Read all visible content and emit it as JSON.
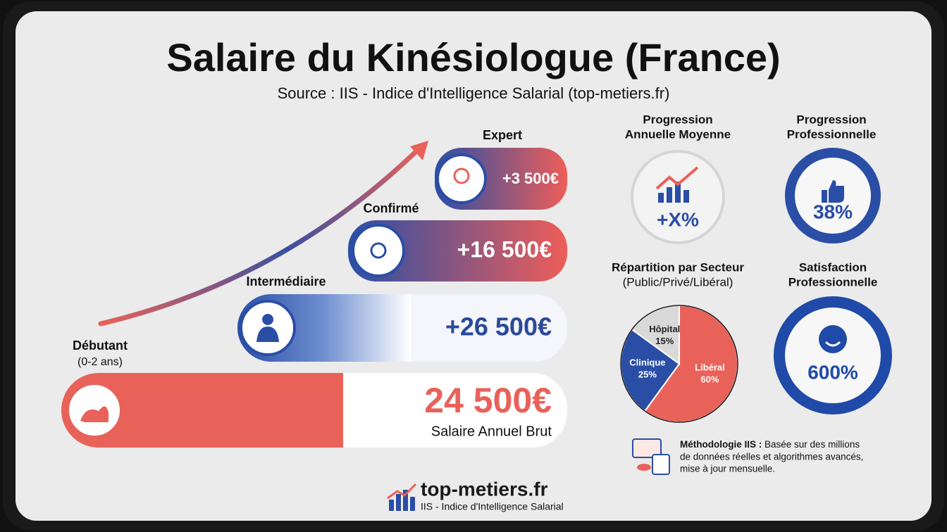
{
  "header": {
    "title": "Salaire du Kinésiologue (France)",
    "source": "Source : IIS - Indice d'Intelligence Salarial (top-metiers.fr)"
  },
  "levels": [
    {
      "name": "Expert",
      "amount": "+3 500€"
    },
    {
      "name": "Confirmé",
      "amount": "+16 500€"
    },
    {
      "name": "Intermédiaire",
      "amount": "+26 500€"
    },
    {
      "name": "Débutant",
      "detail": "(0-2 ans)",
      "amount": "24 500€",
      "caption": "Salaire Annuel Brut"
    }
  ],
  "progression_annuelle": {
    "title_lines": [
      "Progression",
      "Annuelle Moyenne"
    ],
    "value": "+X%"
  },
  "progression_professionnelle": {
    "title_lines": [
      "Progression",
      "Professionnelle"
    ],
    "value": "38%"
  },
  "sector": {
    "title_lines": [
      "Répartition par Secteur",
      "(Public/Privé/Libéral)"
    ],
    "pie": {
      "type": "pie",
      "labels": [
        "Libéral",
        "Clinique",
        "Hôpital"
      ],
      "values": [
        60,
        25,
        15
      ],
      "value_labels": [
        "60%",
        "25%",
        "15%"
      ],
      "colors": [
        "#e8625a",
        "#2a4ea6",
        "#d9d9d9"
      ]
    }
  },
  "satisfaction": {
    "title_lines": [
      "Satisfaction",
      "Professionnelle"
    ],
    "value": "600%"
  },
  "methodology": {
    "label": "Méthodologie IIS :",
    "first_line": "Basée sur des millions",
    "lines": [
      "de données réelles et algorithmes avancés,",
      "mise à jour mensuelle."
    ]
  },
  "footer": {
    "brand": "top-metiers.fr",
    "tagline": "IIS - Indice d'Intelligence Salarial"
  }
}
